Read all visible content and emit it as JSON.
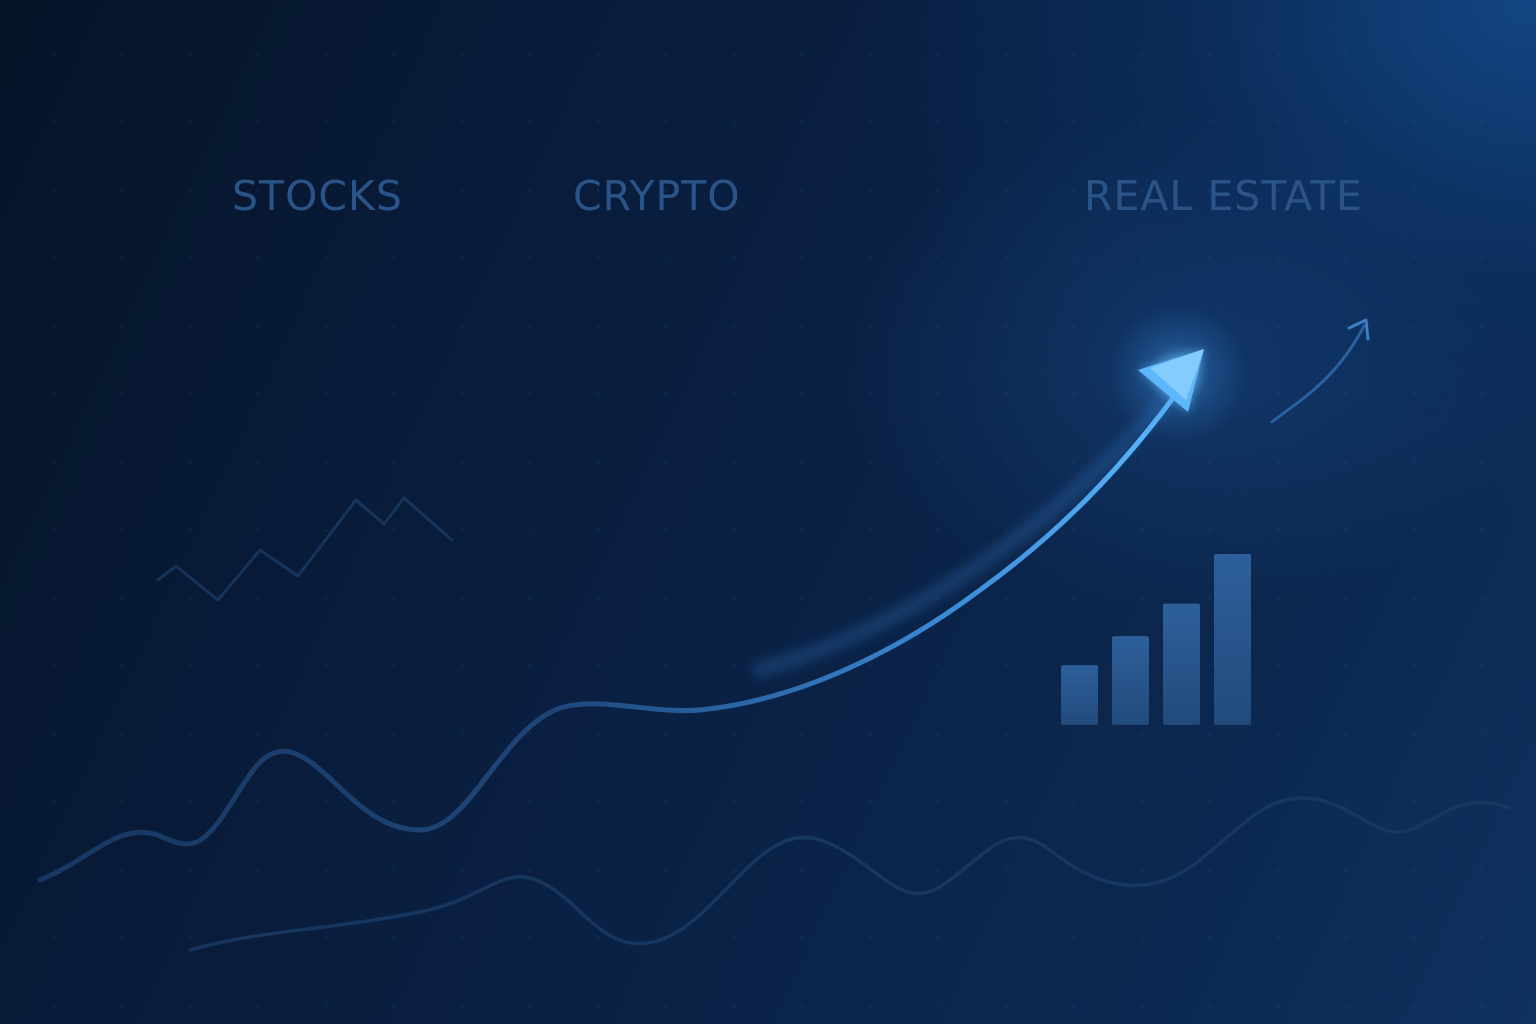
{
  "labels": {
    "stocks": "STOCKS",
    "crypto": "CRYPTO",
    "real_estate": "REAL ESTATE"
  },
  "chart_data": {
    "type": "bar",
    "categories": [
      "",
      "",
      "",
      ""
    ],
    "values": [
      35,
      52,
      71,
      100
    ],
    "ylim": [
      0,
      100
    ]
  },
  "colors": {
    "background": "#0a1f42",
    "label": "#2a5488",
    "arrow": "#4aa8f0",
    "arrow_glow": "#9ed8ff",
    "bar": "#2b5a92",
    "faint_line": "#1d3d6a"
  },
  "icons": {
    "main_arrow": "trend-up-arrow-icon",
    "small_arrow": "small-trend-arrow-icon",
    "zigzag": "stock-zigzag-icon"
  }
}
